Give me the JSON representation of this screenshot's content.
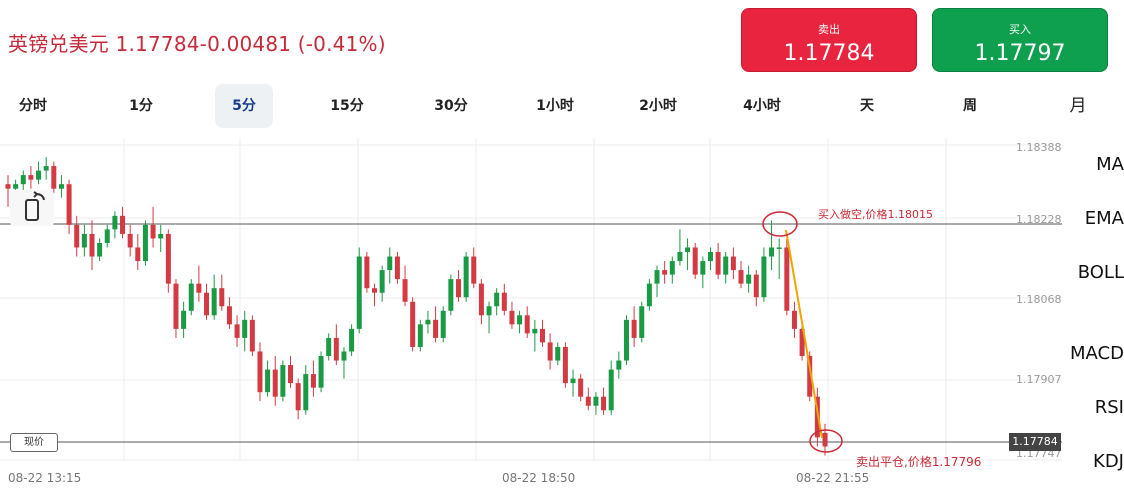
{
  "header": {
    "pair": "英镑兑美元",
    "quote": "1.17784-0.00481 (-0.41%)"
  },
  "sell": {
    "label": "卖出",
    "price": "1.17784",
    "color": "#e8243e"
  },
  "buy": {
    "label": "买入",
    "price": "1.17797",
    "color": "#0fa04f"
  },
  "tabs": [
    "分时",
    "1分",
    "5分",
    "15分",
    "30分",
    "1小时",
    "2小时",
    "4小时",
    "天",
    "周",
    "月"
  ],
  "active_tab": "5分",
  "indicators": [
    "MA",
    "EMA",
    "BOLL",
    "MACD",
    "RSI",
    "KDJ"
  ],
  "chart_data": {
    "type": "candlestick",
    "y_ticks": [
      "1.18388",
      "1.18228",
      "1.18068",
      "1.17907",
      "1.17747"
    ],
    "x_ticks": [
      "08-22 13:15",
      "08-22 18:50",
      "08-22 21:55"
    ],
    "current_price_label": "现价",
    "current_price": "1.17784",
    "buy_annotation": "买入做空,价格1.18015",
    "sell_annotation": "卖出平仓,价格1.17796",
    "up_color": "#1a9a45",
    "down_color": "#d23a44",
    "arrow_color": "#f0a500",
    "ylim": [
      1.1773,
      1.1842
    ],
    "candles": [
      [
        1.1834,
        1.1836,
        1.1829,
        1.1833
      ],
      [
        1.1833,
        1.1835,
        1.183,
        1.1834
      ],
      [
        1.1834,
        1.1837,
        1.1832,
        1.1836
      ],
      [
        1.1836,
        1.1838,
        1.1833,
        1.1835
      ],
      [
        1.1835,
        1.1839,
        1.1834,
        1.1837
      ],
      [
        1.1837,
        1.184,
        1.1835,
        1.1838
      ],
      [
        1.1838,
        1.1839,
        1.1832,
        1.1833
      ],
      [
        1.1833,
        1.1836,
        1.1831,
        1.1834
      ],
      [
        1.1834,
        1.1835,
        1.1823,
        1.1825
      ],
      [
        1.1825,
        1.1827,
        1.1818,
        1.182
      ],
      [
        1.182,
        1.1825,
        1.1818,
        1.1823
      ],
      [
        1.1823,
        1.1826,
        1.1815,
        1.1818
      ],
      [
        1.1818,
        1.1822,
        1.1817,
        1.1821
      ],
      [
        1.1821,
        1.1825,
        1.182,
        1.1824
      ],
      [
        1.1824,
        1.1828,
        1.1822,
        1.1827
      ],
      [
        1.1827,
        1.1829,
        1.1822,
        1.1823
      ],
      [
        1.1823,
        1.1825,
        1.1818,
        1.182
      ],
      [
        1.182,
        1.1823,
        1.1815,
        1.1817
      ],
      [
        1.1817,
        1.1826,
        1.1816,
        1.1825
      ],
      [
        1.1825,
        1.1829,
        1.182,
        1.1822
      ],
      [
        1.1822,
        1.1825,
        1.1819,
        1.1823
      ],
      [
        1.1823,
        1.1824,
        1.181,
        1.1812
      ],
      [
        1.1812,
        1.1813,
        1.18,
        1.1802
      ],
      [
        1.1802,
        1.1808,
        1.18,
        1.1806
      ],
      [
        1.1806,
        1.1813,
        1.1805,
        1.1812
      ],
      [
        1.1812,
        1.1816,
        1.1808,
        1.181
      ],
      [
        1.181,
        1.1812,
        1.1804,
        1.1805
      ],
      [
        1.1805,
        1.1814,
        1.1804,
        1.1811
      ],
      [
        1.1811,
        1.1814,
        1.1806,
        1.1807
      ],
      [
        1.1807,
        1.1809,
        1.1802,
        1.1803
      ],
      [
        1.1803,
        1.1805,
        1.1798,
        1.18
      ],
      [
        1.18,
        1.1806,
        1.1797,
        1.1804
      ],
      [
        1.1804,
        1.1805,
        1.1796,
        1.1797
      ],
      [
        1.1797,
        1.1799,
        1.1786,
        1.1788
      ],
      [
        1.1788,
        1.1795,
        1.1787,
        1.1793
      ],
      [
        1.1793,
        1.1796,
        1.1785,
        1.1787
      ],
      [
        1.1787,
        1.1795,
        1.1786,
        1.1794
      ],
      [
        1.1794,
        1.1796,
        1.1789,
        1.179
      ],
      [
        1.179,
        1.1791,
        1.1782,
        1.1784
      ],
      [
        1.1784,
        1.1794,
        1.1783,
        1.1792
      ],
      [
        1.1792,
        1.1795,
        1.1787,
        1.1789
      ],
      [
        1.1789,
        1.1797,
        1.1788,
        1.1796
      ],
      [
        1.1796,
        1.1801,
        1.1795,
        1.18
      ],
      [
        1.18,
        1.1803,
        1.1794,
        1.1795
      ],
      [
        1.1795,
        1.1798,
        1.1791,
        1.1797
      ],
      [
        1.1797,
        1.1803,
        1.1796,
        1.1802
      ],
      [
        1.1802,
        1.182,
        1.1801,
        1.1818
      ],
      [
        1.1818,
        1.1819,
        1.181,
        1.1811
      ],
      [
        1.1811,
        1.1812,
        1.1807,
        1.181
      ],
      [
        1.181,
        1.1816,
        1.1808,
        1.1815
      ],
      [
        1.1815,
        1.182,
        1.1812,
        1.1818
      ],
      [
        1.1818,
        1.1819,
        1.1812,
        1.1813
      ],
      [
        1.1813,
        1.1816,
        1.1807,
        1.1808
      ],
      [
        1.1808,
        1.1809,
        1.1797,
        1.1798
      ],
      [
        1.1798,
        1.1804,
        1.1797,
        1.1803
      ],
      [
        1.1803,
        1.1806,
        1.1801,
        1.1804
      ],
      [
        1.1804,
        1.1807,
        1.1799,
        1.18
      ],
      [
        1.18,
        1.1807,
        1.1799,
        1.1806
      ],
      [
        1.1806,
        1.1814,
        1.1805,
        1.1813
      ],
      [
        1.1813,
        1.1815,
        1.1808,
        1.1809
      ],
      [
        1.1809,
        1.1819,
        1.1808,
        1.1818
      ],
      [
        1.1818,
        1.182,
        1.1811,
        1.1812
      ],
      [
        1.1812,
        1.1813,
        1.1803,
        1.1805
      ],
      [
        1.1805,
        1.1808,
        1.1801,
        1.1807
      ],
      [
        1.1807,
        1.1811,
        1.1805,
        1.181
      ],
      [
        1.181,
        1.1812,
        1.1805,
        1.1806
      ],
      [
        1.1806,
        1.1808,
        1.1802,
        1.1803
      ],
      [
        1.1803,
        1.1806,
        1.1801,
        1.1805
      ],
      [
        1.1805,
        1.1807,
        1.18,
        1.1801
      ],
      [
        1.1801,
        1.1804,
        1.1797,
        1.1802
      ],
      [
        1.1802,
        1.1804,
        1.1798,
        1.1799
      ],
      [
        1.1799,
        1.1801,
        1.1793,
        1.1795
      ],
      [
        1.1795,
        1.1799,
        1.1794,
        1.1798
      ],
      [
        1.1798,
        1.1799,
        1.1789,
        1.179
      ],
      [
        1.179,
        1.1793,
        1.1787,
        1.1791
      ],
      [
        1.1791,
        1.1792,
        1.1786,
        1.1787
      ],
      [
        1.1787,
        1.1789,
        1.1784,
        1.1785
      ],
      [
        1.1785,
        1.1788,
        1.1783,
        1.1787
      ],
      [
        1.1787,
        1.1789,
        1.1783,
        1.1784
      ],
      [
        1.1784,
        1.1795,
        1.1783,
        1.1793
      ],
      [
        1.1793,
        1.1797,
        1.1791,
        1.1795
      ],
      [
        1.1795,
        1.1805,
        1.1794,
        1.1804
      ],
      [
        1.1804,
        1.1807,
        1.1798,
        1.18
      ],
      [
        1.18,
        1.1808,
        1.1799,
        1.1807
      ],
      [
        1.1807,
        1.1813,
        1.1806,
        1.1812
      ],
      [
        1.1812,
        1.1816,
        1.1809,
        1.1815
      ],
      [
        1.1815,
        1.1817,
        1.1812,
        1.1814
      ],
      [
        1.1814,
        1.1818,
        1.1812,
        1.1817
      ],
      [
        1.1817,
        1.1824,
        1.1816,
        1.1819
      ],
      [
        1.1819,
        1.1822,
        1.1815,
        1.182
      ],
      [
        1.182,
        1.1821,
        1.1813,
        1.1814
      ],
      [
        1.1814,
        1.1818,
        1.1811,
        1.1817
      ],
      [
        1.1817,
        1.182,
        1.1815,
        1.1819
      ],
      [
        1.1819,
        1.1821,
        1.1813,
        1.1814
      ],
      [
        1.1814,
        1.1819,
        1.1812,
        1.1818
      ],
      [
        1.1818,
        1.182,
        1.1813,
        1.1815
      ],
      [
        1.1815,
        1.1817,
        1.1811,
        1.1812
      ],
      [
        1.1812,
        1.1816,
        1.181,
        1.1814
      ],
      [
        1.1814,
        1.1815,
        1.1807,
        1.1809
      ],
      [
        1.1809,
        1.182,
        1.1808,
        1.1818
      ],
      [
        1.1818,
        1.1826,
        1.1815,
        1.182
      ],
      [
        1.182,
        1.1822,
        1.1813,
        1.182
      ],
      [
        1.182,
        1.1822,
        1.1805,
        1.1806
      ],
      [
        1.1806,
        1.1808,
        1.18,
        1.1802
      ],
      [
        1.1802,
        1.1804,
        1.1795,
        1.1796
      ],
      [
        1.1796,
        1.1797,
        1.1786,
        1.1787
      ],
      [
        1.1787,
        1.1789,
        1.1776,
        1.1778
      ],
      [
        1.1779,
        1.1781,
        1.1774,
        1.1776
      ]
    ]
  }
}
